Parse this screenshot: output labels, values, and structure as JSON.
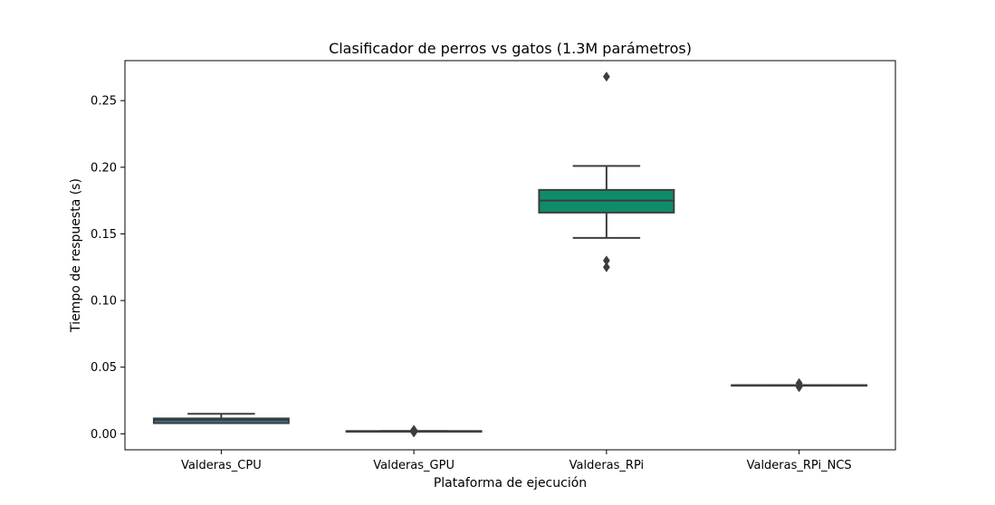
{
  "chart_data": {
    "type": "box",
    "title": "Clasificador de perros vs gatos (1.3M parámetros)",
    "xlabel": "Plataforma de ejecución",
    "ylabel": "Tiempo de respuesta (s)",
    "ylim": [
      -0.012,
      0.28
    ],
    "yticks": [
      0.0,
      0.05,
      0.1,
      0.15,
      0.2,
      0.25
    ],
    "ytick_labels": [
      "0.00",
      "0.05",
      "0.10",
      "0.15",
      "0.20",
      "0.25"
    ],
    "grid": false,
    "legend": "none",
    "categories": [
      "Valderas_CPU",
      "Valderas_GPU",
      "Valderas_RPi",
      "Valderas_RPi_NCS"
    ],
    "boxes": [
      {
        "category": "Valderas_CPU",
        "whisker_low": 0.008,
        "q1": 0.008,
        "median": 0.0105,
        "q3": 0.0115,
        "whisker_high": 0.015,
        "outliers": [],
        "color": "#3274a1"
      },
      {
        "category": "Valderas_GPU",
        "whisker_low": 0.002,
        "q1": 0.002,
        "median": 0.002,
        "q3": 0.002,
        "whisker_high": 0.002,
        "outliers": [
          0.001,
          0.0025,
          0.003
        ],
        "color": "#e1812c"
      },
      {
        "category": "Valderas_RPi",
        "whisker_low": 0.147,
        "q1": 0.166,
        "median": 0.175,
        "q3": 0.183,
        "whisker_high": 0.201,
        "outliers": [
          0.125,
          0.13,
          0.268
        ],
        "color": "#0f8c6a"
      },
      {
        "category": "Valderas_RPi_NCS",
        "whisker_low": 0.0365,
        "q1": 0.0365,
        "median": 0.0365,
        "q3": 0.0365,
        "whisker_high": 0.0365,
        "outliers": [
          0.035,
          0.038
        ],
        "color": "#c03d3e"
      }
    ]
  }
}
